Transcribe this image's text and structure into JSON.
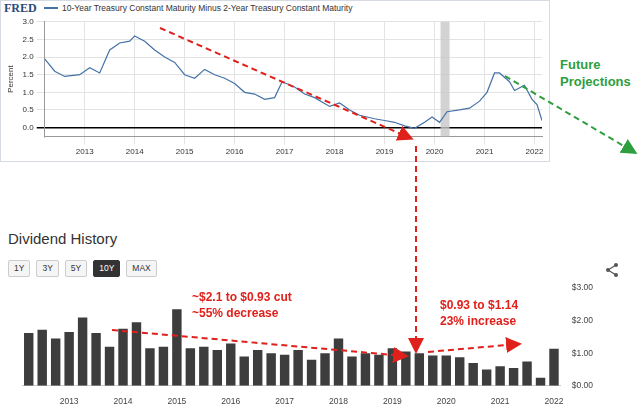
{
  "chart_data": [
    {
      "type": "line",
      "brand": "FRED",
      "y_label": "Percent",
      "x": [
        2012.2,
        2012.4,
        2012.6,
        2012.9,
        2013.1,
        2013.3,
        2013.5,
        2013.7,
        2013.9,
        2014.0,
        2014.2,
        2014.4,
        2014.6,
        2014.8,
        2015.0,
        2015.2,
        2015.4,
        2015.6,
        2015.8,
        2016.0,
        2016.2,
        2016.4,
        2016.6,
        2016.8,
        2016.95,
        2017.2,
        2017.4,
        2017.6,
        2017.9,
        2018.1,
        2018.3,
        2018.5,
        2018.8,
        2019.0,
        2019.2,
        2019.4,
        2019.6,
        2019.8,
        2019.95,
        2020.1,
        2020.25,
        2020.5,
        2020.7,
        2020.9,
        2021.05,
        2021.2,
        2021.3,
        2021.5,
        2021.6,
        2021.8,
        2021.95,
        2022.05,
        2022.15
      ],
      "series": [
        {
          "name": "10-Year Treasury Constant Maturity Minus 2-Year Treasury Constant Maturity",
          "color": "#4572a7",
          "values": [
            1.95,
            1.6,
            1.45,
            1.5,
            1.7,
            1.55,
            2.2,
            2.4,
            2.45,
            2.6,
            2.45,
            2.2,
            2.0,
            1.85,
            1.5,
            1.4,
            1.65,
            1.5,
            1.4,
            1.25,
            1.0,
            0.95,
            0.8,
            0.85,
            1.3,
            1.15,
            0.95,
            0.85,
            0.6,
            0.7,
            0.5,
            0.35,
            0.25,
            0.2,
            0.15,
            0.05,
            -0.02,
            0.15,
            0.3,
            0.15,
            0.45,
            0.5,
            0.55,
            0.75,
            1.0,
            1.55,
            1.55,
            1.3,
            1.05,
            1.2,
            0.8,
            0.65,
            0.2
          ]
        }
      ],
      "xlim": [
        2012.2,
        2022.15
      ],
      "xticks": [
        2013,
        2014,
        2015,
        2016,
        2017,
        2018,
        2019,
        2020,
        2021,
        2022
      ],
      "ylim": [
        -0.25,
        3.0
      ],
      "yticks": [
        {
          "value": 0,
          "label": "0.0"
        },
        0.5,
        {
          "value": 1,
          "label": "1.0"
        },
        1.5,
        {
          "value": 2,
          "label": "2.0"
        },
        2.5,
        {
          "value": 3,
          "label": "3.0"
        }
      ],
      "grid": true,
      "legend": "top-left",
      "shaded": [
        2020.12,
        2020.3
      ],
      "annotations": [
        "Future Projections"
      ]
    },
    {
      "type": "bar",
      "title": "Dividend History",
      "range_buttons": [
        "1Y",
        "3Y",
        "5Y",
        "10Y",
        "MAX"
      ],
      "selected": "10Y",
      "categories": [
        null,
        null,
        null,
        "2013",
        null,
        null,
        null,
        "2014",
        null,
        null,
        null,
        "2015",
        null,
        null,
        null,
        "2016",
        null,
        null,
        null,
        "2017",
        null,
        null,
        null,
        "2018",
        null,
        null,
        null,
        "2019",
        null,
        null,
        null,
        "2020",
        null,
        null,
        null,
        "2021",
        null,
        null,
        null,
        "2022"
      ],
      "values": [
        1.62,
        1.72,
        1.45,
        1.65,
        2.1,
        1.62,
        1.2,
        1.75,
        1.95,
        1.15,
        1.2,
        2.35,
        1.15,
        1.2,
        1.1,
        1.3,
        0.9,
        1.1,
        1.0,
        0.95,
        1.1,
        0.8,
        1.0,
        1.45,
        0.9,
        1.0,
        0.95,
        1.15,
        1.05,
        1.0,
        0.93,
        0.93,
        0.88,
        0.7,
        0.5,
        0.6,
        0.55,
        0.75,
        0.25,
        1.14
      ],
      "color": "#3d3d3d",
      "ylim": [
        0,
        3
      ],
      "yticks": [
        {
          "value": 0,
          "label": "$0.00"
        },
        {
          "value": 1,
          "label": "$1.00"
        },
        {
          "value": 2,
          "label": "$2.00"
        },
        {
          "value": 3,
          "label": "$3.00"
        }
      ],
      "grid": false,
      "annotations": [
        "~$2.1 to $0.93 cut",
        "~55% decrease",
        "$0.93 to $1.14",
        "23% increase"
      ]
    }
  ]
}
